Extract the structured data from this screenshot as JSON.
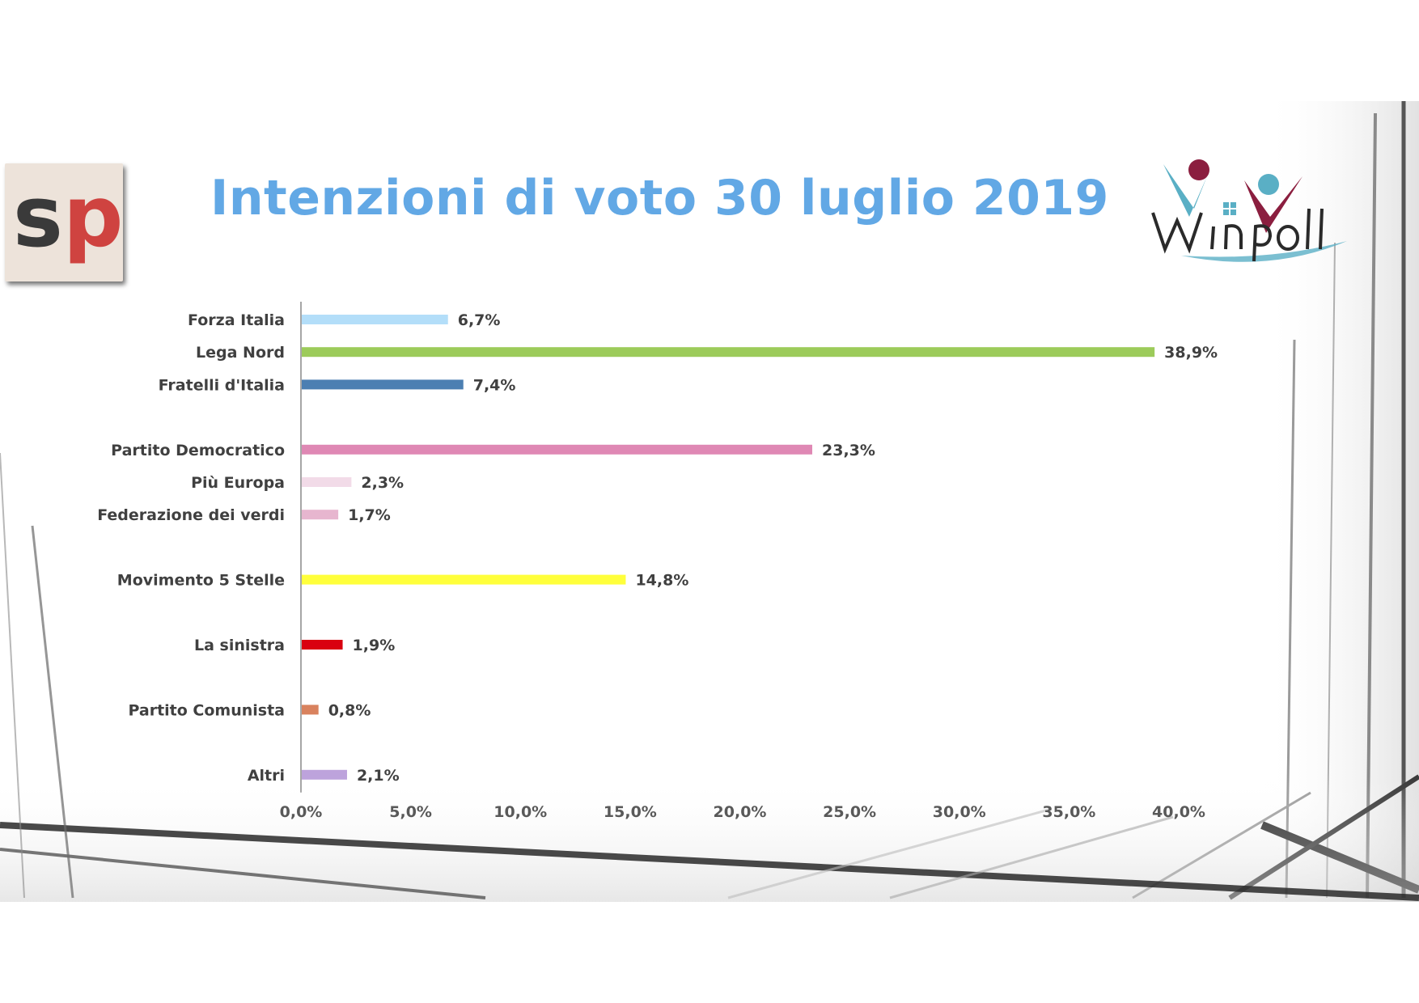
{
  "title": "Intenzioni di voto 30 luglio 2019",
  "logos": {
    "left": {
      "letters": "sp",
      "colors": [
        "#3a3a3a",
        "#cf4340"
      ]
    },
    "right": {
      "text": "Winpoll",
      "colors": [
        "#8b1e3f",
        "#5aafc5",
        "#2a2a2a"
      ]
    }
  },
  "colors": {
    "title": "#62a8e5",
    "axis": "#a6a6a6",
    "label": "#404040"
  },
  "chart_data": {
    "type": "bar",
    "orientation": "horizontal",
    "categories": [
      "Forza Italia",
      "Lega Nord",
      "Fratelli d'Italia",
      "",
      "Partito Democratico",
      "Più Europa",
      "Federazione dei verdi",
      "",
      "Movimento 5 Stelle",
      "",
      "La sinistra",
      "",
      "Partito Comunista",
      "",
      "Altri"
    ],
    "values": [
      6.7,
      38.9,
      7.4,
      null,
      23.3,
      2.3,
      1.7,
      null,
      14.8,
      null,
      1.9,
      null,
      0.8,
      null,
      2.1
    ],
    "value_labels": [
      "6,7%",
      "38,9%",
      "7,4%",
      "",
      "23,3%",
      "2,3%",
      "1,7%",
      "",
      "14,8%",
      "",
      "1,9%",
      "",
      "0,8%",
      "",
      "2,1%"
    ],
    "bar_colors": [
      "#b3def9",
      "#9ccb5a",
      "#4c7fb2",
      "",
      "#df88b4",
      "#f2dbe8",
      "#e7b6cf",
      "",
      "#ffff3b",
      "",
      "#d90010",
      "",
      "#d9825e",
      "",
      "#bda3dc"
    ],
    "xlim": [
      0,
      40
    ],
    "xticks": [
      0,
      5,
      10,
      15,
      20,
      25,
      30,
      35,
      40
    ],
    "xtick_labels": [
      "0,0%",
      "5,0%",
      "10,0%",
      "15,0%",
      "20,0%",
      "25,0%",
      "30,0%",
      "35,0%",
      "40,0%"
    ],
    "title": "",
    "xlabel": "",
    "ylabel": "",
    "grid": false,
    "legend": "none"
  }
}
